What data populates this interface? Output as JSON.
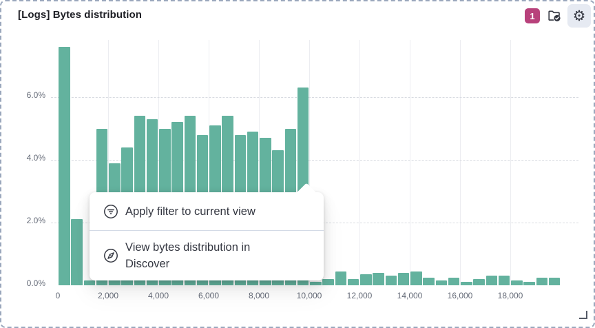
{
  "panel": {
    "title": "[Logs] Bytes distribution",
    "header": {
      "filter_badge_count": "1",
      "filter_badge_color": "#B8417B",
      "icons": [
        "folder-check-icon",
        "gear-icon"
      ]
    },
    "border_color": "#9AA7BC"
  },
  "context_menu": {
    "items": [
      {
        "icon": "filter-icon",
        "label": "Apply filter to current view"
      },
      {
        "icon": "compass-icon",
        "label": "View bytes distribution in Discover"
      }
    ]
  },
  "chart_data": {
    "type": "bar",
    "title": "[Logs] Bytes distribution",
    "xlabel": "",
    "ylabel": "",
    "y_format": "percent",
    "x_start": 0,
    "bucket_size": 500,
    "values": [
      7.6,
      2.1,
      0.15,
      5.0,
      3.9,
      4.4,
      5.4,
      5.3,
      5.0,
      5.2,
      5.4,
      4.8,
      5.1,
      5.4,
      4.8,
      4.9,
      4.7,
      4.3,
      5.0,
      6.3,
      0.1,
      0.2,
      0.45,
      0.2,
      0.35,
      0.4,
      0.3,
      0.4,
      0.45,
      0.25,
      0.15,
      0.25,
      0.1,
      0.2,
      0.3,
      0.3,
      0.15,
      0.1,
      0.25,
      0.25
    ],
    "x_tick_values": [
      0,
      2000,
      4000,
      6000,
      8000,
      10000,
      12000,
      14000,
      16000,
      18000
    ],
    "x_tick_labels": [
      "0",
      "2,000",
      "4,000",
      "6,000",
      "8,000",
      "10,000",
      "12,000",
      "14,000",
      "16,000",
      "18,000"
    ],
    "y_tick_values": [
      0,
      2,
      4,
      6
    ],
    "y_tick_labels": [
      "0.0%",
      "2.0%",
      "4.0%",
      "6.0%"
    ],
    "xlim": [
      0,
      20700
    ],
    "ylim": [
      0,
      7.8
    ],
    "bar_color": "#63B29E",
    "grid": {
      "vertical_solid": true,
      "horizontal_dashed": true
    },
    "legend": "none"
  }
}
